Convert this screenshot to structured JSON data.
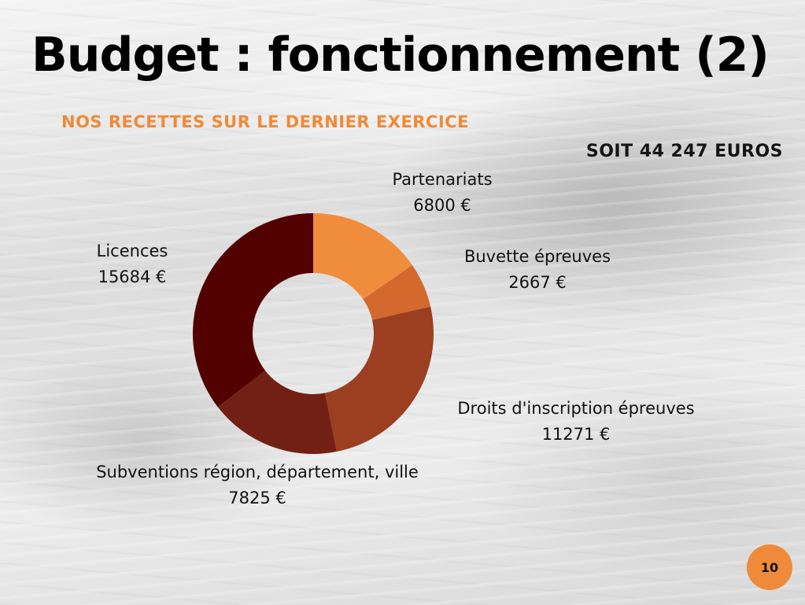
{
  "slide": {
    "title": "Budget : fonctionnement (2)",
    "subtitle": "NOS RECETTES SUR LE DERNIER EXERCICE",
    "total": "SOIT 44 247 EUROS",
    "page_number": "10"
  },
  "colors": {
    "accent": "#ef8a3a",
    "text": "#111111"
  },
  "chart_data": {
    "type": "pie",
    "variant": "donut",
    "title": "",
    "unit": "€",
    "categories": [
      "Partenariats",
      "Buvette épreuves",
      "Droits d'inscription épreuves",
      "Subventions région, département, ville",
      "Licences"
    ],
    "values": [
      6800,
      2667,
      11271,
      7825,
      15684
    ],
    "value_labels": [
      "6800 €",
      "2667 €",
      "11271 €",
      "7825 €",
      "15684 €"
    ],
    "colors": [
      "#f08d3c",
      "#d4692e",
      "#9b3f20",
      "#722014",
      "#520000"
    ],
    "start_angle_deg": 0,
    "direction": "clockwise",
    "legend": "none"
  }
}
